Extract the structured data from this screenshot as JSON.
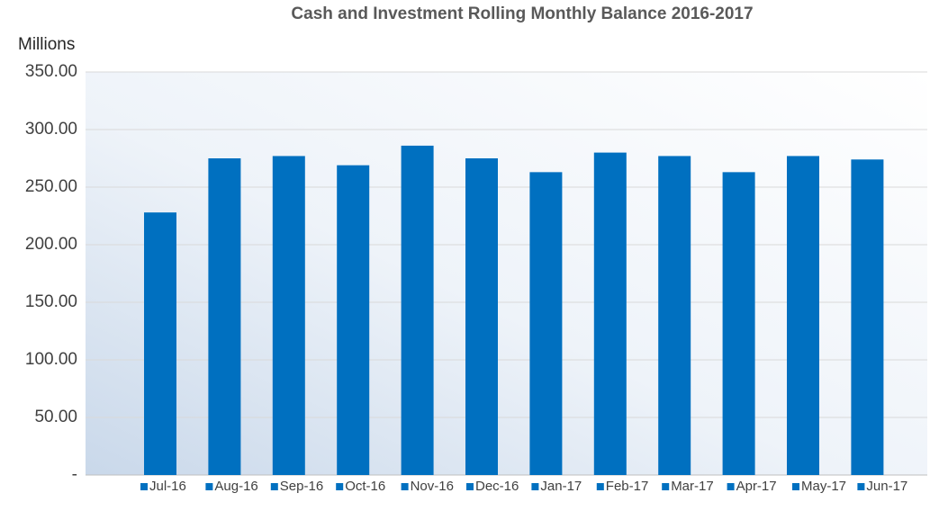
{
  "chart_data": {
    "type": "bar",
    "title": "Cash and Investment Rolling Monthly Balance 2016-2017",
    "y_axis_label": "Millions",
    "categories": [
      "Jul-16",
      "Aug-16",
      "Sep-16",
      "Oct-16",
      "Nov-16",
      "Dec-16",
      "Jan-17",
      "Feb-17",
      "Mar-17",
      "Apr-17",
      "May-17",
      "Jun-17"
    ],
    "values": [
      228,
      275,
      277,
      269,
      286,
      275,
      263,
      280,
      277,
      263,
      277,
      274
    ],
    "color": "#0070c0",
    "ylim": [
      0,
      350
    ],
    "yticks": [
      {
        "value": 0,
        "label": "-"
      },
      {
        "value": 50,
        "label": "50.00"
      },
      {
        "value": 100,
        "label": "100.00"
      },
      {
        "value": 150,
        "label": "150.00"
      },
      {
        "value": 200,
        "label": "200.00"
      },
      {
        "value": 250,
        "label": "250.00"
      },
      {
        "value": 300,
        "label": "300.00"
      },
      {
        "value": 350,
        "label": "350.00"
      }
    ],
    "grid": true,
    "legend": "bottom"
  }
}
